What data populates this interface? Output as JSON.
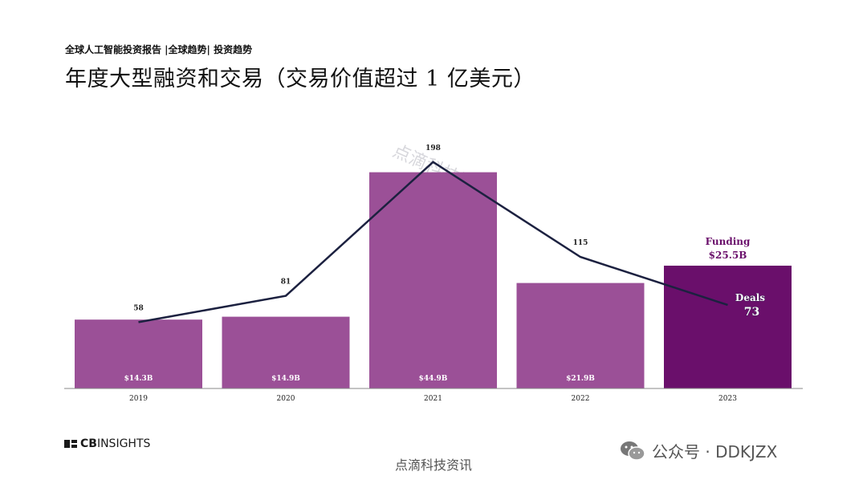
{
  "header": {
    "subtitle": "全球人工智能投资报告 |全球趋势| 投资趋势",
    "title": "年度大型融资和交易（交易价值超过 1 亿美元）"
  },
  "colors": {
    "bar": "#9b5097",
    "bar_highlight": "#6a0f6b",
    "line": "#1c2140",
    "funding_label": "#6a0f6b"
  },
  "chart_data": {
    "type": "bar",
    "categories": [
      "2019",
      "2020",
      "2021",
      "2022",
      "2023"
    ],
    "series": [
      {
        "type": "bar",
        "values": [
          14.3,
          14.9,
          44.9,
          21.9,
          25.5
        ],
        "labels": [
          "$14.3B",
          "$14.9B",
          "$44.9B",
          "$21.9B",
          "$25.5B"
        ]
      },
      {
        "type": "line",
        "values": [
          58,
          81,
          198,
          115,
          73
        ],
        "labels": [
          "58",
          "81",
          "198",
          "115",
          "73"
        ]
      }
    ],
    "highlight": {
      "category": "2023",
      "funding_label": "Funding",
      "funding_value": "$25.5B",
      "deals_label": "Deals",
      "deals_value": "73"
    },
    "bar_ylim": [
      0,
      50
    ],
    "line_ylim": [
      0,
      230
    ]
  },
  "watermark": "点滴科技资讯",
  "footer": {
    "logo_text_1": "CB",
    "logo_text_2": "INSIGHTS",
    "center_text": "点滴科技资讯",
    "wechat_text": "公众号 · DDKJZX"
  }
}
